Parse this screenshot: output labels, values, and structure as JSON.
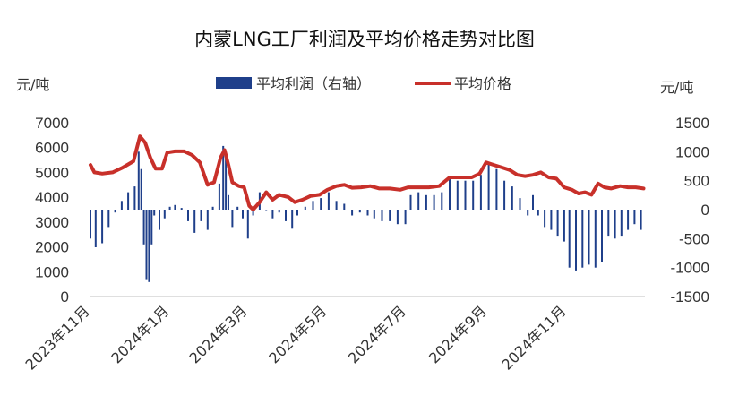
{
  "chart_data": {
    "type": "bar+line",
    "title": "内蒙LNG工厂利润及平均价格走势对比图",
    "left_axis": {
      "unit_label": "元/吨",
      "range": [
        0,
        7000
      ],
      "ticks": [
        "0",
        "1000",
        "2000",
        "3000",
        "4000",
        "5000",
        "6000",
        "7000"
      ]
    },
    "right_axis": {
      "unit_label": "元/吨",
      "range": [
        -1500,
        1500
      ],
      "ticks": [
        "-1500",
        "-1000",
        "-500",
        "0",
        "500",
        "1000",
        "1500"
      ]
    },
    "x_axis": {
      "range": [
        "2023-11-01",
        "2024-12-31"
      ],
      "tick_labels": [
        {
          "date": "2023-11-01",
          "label": "2023年11月"
        },
        {
          "date": "2024-01-01",
          "label": "2024年1月"
        },
        {
          "date": "2024-03-01",
          "label": "2024年3月"
        },
        {
          "date": "2024-05-01",
          "label": "2024年5月"
        },
        {
          "date": "2024-07-01",
          "label": "2024年7月"
        },
        {
          "date": "2024-09-01",
          "label": "2024年9月"
        },
        {
          "date": "2024-11-01",
          "label": "2024年11月"
        }
      ]
    },
    "legend": {
      "placement": "top-center"
    },
    "series": [
      {
        "name": "平均利润（右轴）",
        "type": "bar",
        "axis": "right",
        "color": "#1F3F8A",
        "points": [
          [
            "2023-11-01",
            -500
          ],
          [
            "2023-11-05",
            -650
          ],
          [
            "2023-11-10",
            -580
          ],
          [
            "2023-11-15",
            -300
          ],
          [
            "2023-11-20",
            -50
          ],
          [
            "2023-11-25",
            150
          ],
          [
            "2023-11-30",
            300
          ],
          [
            "2023-12-05",
            400
          ],
          [
            "2023-12-08",
            1000
          ],
          [
            "2023-12-10",
            700
          ],
          [
            "2023-12-12",
            -600
          ],
          [
            "2023-12-14",
            -1200
          ],
          [
            "2023-12-16",
            -1250
          ],
          [
            "2023-12-18",
            -600
          ],
          [
            "2023-12-20",
            -100
          ],
          [
            "2023-12-24",
            -350
          ],
          [
            "2023-12-28",
            -150
          ],
          [
            "2024-01-01",
            50
          ],
          [
            "2024-01-05",
            80
          ],
          [
            "2024-01-10",
            30
          ],
          [
            "2024-01-15",
            -200
          ],
          [
            "2024-01-20",
            -400
          ],
          [
            "2024-01-25",
            -200
          ],
          [
            "2024-01-30",
            -350
          ],
          [
            "2024-02-03",
            50
          ],
          [
            "2024-02-08",
            450
          ],
          [
            "2024-02-11",
            1100
          ],
          [
            "2024-02-13",
            900
          ],
          [
            "2024-02-15",
            250
          ],
          [
            "2024-02-18",
            -300
          ],
          [
            "2024-02-22",
            50
          ],
          [
            "2024-02-26",
            -150
          ],
          [
            "2024-03-01",
            -500
          ],
          [
            "2024-03-05",
            -100
          ],
          [
            "2024-03-10",
            300
          ],
          [
            "2024-03-15",
            0
          ],
          [
            "2024-03-20",
            -150
          ],
          [
            "2024-03-25",
            -50
          ],
          [
            "2024-03-30",
            -200
          ],
          [
            "2024-04-04",
            -330
          ],
          [
            "2024-04-08",
            -100
          ],
          [
            "2024-04-14",
            50
          ],
          [
            "2024-04-20",
            150
          ],
          [
            "2024-04-26",
            200
          ],
          [
            "2024-05-02",
            300
          ],
          [
            "2024-05-08",
            150
          ],
          [
            "2024-05-14",
            100
          ],
          [
            "2024-05-20",
            -100
          ],
          [
            "2024-05-26",
            -50
          ],
          [
            "2024-06-01",
            -100
          ],
          [
            "2024-06-06",
            -150
          ],
          [
            "2024-06-12",
            -200
          ],
          [
            "2024-06-18",
            -200
          ],
          [
            "2024-06-24",
            -250
          ],
          [
            "2024-06-30",
            -250
          ],
          [
            "2024-07-04",
            250
          ],
          [
            "2024-07-10",
            300
          ],
          [
            "2024-07-16",
            250
          ],
          [
            "2024-07-22",
            250
          ],
          [
            "2024-07-28",
            300
          ],
          [
            "2024-08-03",
            550
          ],
          [
            "2024-08-09",
            500
          ],
          [
            "2024-08-15",
            500
          ],
          [
            "2024-08-21",
            500
          ],
          [
            "2024-08-27",
            600
          ],
          [
            "2024-09-02",
            800
          ],
          [
            "2024-09-08",
            700
          ],
          [
            "2024-09-14",
            500
          ],
          [
            "2024-09-20",
            400
          ],
          [
            "2024-09-26",
            200
          ],
          [
            "2024-10-02",
            -100
          ],
          [
            "2024-10-06",
            250
          ],
          [
            "2024-10-10",
            -100
          ],
          [
            "2024-10-15",
            -300
          ],
          [
            "2024-10-20",
            -350
          ],
          [
            "2024-10-25",
            -450
          ],
          [
            "2024-10-30",
            -550
          ],
          [
            "2024-11-03",
            -1000
          ],
          [
            "2024-11-08",
            -1050
          ],
          [
            "2024-11-13",
            -1000
          ],
          [
            "2024-11-18",
            -950
          ],
          [
            "2024-11-23",
            -1000
          ],
          [
            "2024-11-28",
            -900
          ],
          [
            "2024-12-03",
            -450
          ],
          [
            "2024-12-08",
            -500
          ],
          [
            "2024-12-13",
            -450
          ],
          [
            "2024-12-18",
            -350
          ],
          [
            "2024-12-23",
            -250
          ],
          [
            "2024-12-28",
            -350
          ]
        ]
      },
      {
        "name": "平均价格",
        "type": "line",
        "axis": "left",
        "color": "#C8302A",
        "points": [
          [
            "2023-11-01",
            5300
          ],
          [
            "2023-11-04",
            5000
          ],
          [
            "2023-11-10",
            4950
          ],
          [
            "2023-11-18",
            5000
          ],
          [
            "2023-11-26",
            5200
          ],
          [
            "2023-12-04",
            5450
          ],
          [
            "2023-12-09",
            6450
          ],
          [
            "2023-12-13",
            6200
          ],
          [
            "2023-12-17",
            5600
          ],
          [
            "2023-12-21",
            5150
          ],
          [
            "2023-12-26",
            5150
          ],
          [
            "2023-12-30",
            5800
          ],
          [
            "2024-01-05",
            5850
          ],
          [
            "2024-01-12",
            5850
          ],
          [
            "2024-01-18",
            5700
          ],
          [
            "2024-01-24",
            5400
          ],
          [
            "2024-01-30",
            4500
          ],
          [
            "2024-02-04",
            4600
          ],
          [
            "2024-02-09",
            5600
          ],
          [
            "2024-02-12",
            5900
          ],
          [
            "2024-02-15",
            5300
          ],
          [
            "2024-02-18",
            4600
          ],
          [
            "2024-02-23",
            4450
          ],
          [
            "2024-02-27",
            4400
          ],
          [
            "2024-03-02",
            3650
          ],
          [
            "2024-03-05",
            3500
          ],
          [
            "2024-03-10",
            3800
          ],
          [
            "2024-03-15",
            4200
          ],
          [
            "2024-03-20",
            3900
          ],
          [
            "2024-03-25",
            4100
          ],
          [
            "2024-04-01",
            4000
          ],
          [
            "2024-04-06",
            3800
          ],
          [
            "2024-04-12",
            3900
          ],
          [
            "2024-04-18",
            4050
          ],
          [
            "2024-04-25",
            4100
          ],
          [
            "2024-05-01",
            4300
          ],
          [
            "2024-05-08",
            4450
          ],
          [
            "2024-05-14",
            4500
          ],
          [
            "2024-05-20",
            4380
          ],
          [
            "2024-05-27",
            4400
          ],
          [
            "2024-06-03",
            4450
          ],
          [
            "2024-06-10",
            4350
          ],
          [
            "2024-06-18",
            4350
          ],
          [
            "2024-06-26",
            4300
          ],
          [
            "2024-07-02",
            4400
          ],
          [
            "2024-07-10",
            4400
          ],
          [
            "2024-07-18",
            4400
          ],
          [
            "2024-07-26",
            4450
          ],
          [
            "2024-08-03",
            4800
          ],
          [
            "2024-08-12",
            4800
          ],
          [
            "2024-08-20",
            4800
          ],
          [
            "2024-08-26",
            4950
          ],
          [
            "2024-08-31",
            5400
          ],
          [
            "2024-09-06",
            5300
          ],
          [
            "2024-09-12",
            5200
          ],
          [
            "2024-09-18",
            5100
          ],
          [
            "2024-09-24",
            4900
          ],
          [
            "2024-09-30",
            4850
          ],
          [
            "2024-10-06",
            4900
          ],
          [
            "2024-10-12",
            5000
          ],
          [
            "2024-10-18",
            4800
          ],
          [
            "2024-10-24",
            4750
          ],
          [
            "2024-10-30",
            4400
          ],
          [
            "2024-11-05",
            4300
          ],
          [
            "2024-11-10",
            4150
          ],
          [
            "2024-11-15",
            4200
          ],
          [
            "2024-11-20",
            4100
          ],
          [
            "2024-11-25",
            4550
          ],
          [
            "2024-11-30",
            4400
          ],
          [
            "2024-12-05",
            4350
          ],
          [
            "2024-12-12",
            4450
          ],
          [
            "2024-12-18",
            4400
          ],
          [
            "2024-12-24",
            4400
          ],
          [
            "2024-12-30",
            4350
          ]
        ]
      }
    ]
  }
}
